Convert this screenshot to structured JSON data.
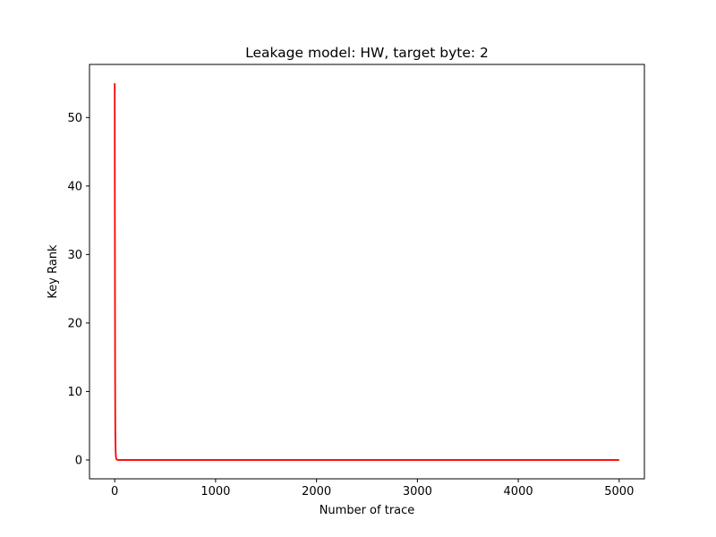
{
  "chart_data": {
    "type": "line",
    "title": "Leakage model: HW, target byte: 2",
    "xlabel": "Number of trace",
    "ylabel": "Key Rank",
    "xlim": [
      -250,
      5250
    ],
    "ylim": [
      -2.75,
      57.75
    ],
    "x_ticks": [
      0,
      1000,
      2000,
      3000,
      4000,
      5000
    ],
    "y_ticks": [
      0,
      10,
      20,
      30,
      40,
      50
    ],
    "x_tick_labels": [
      "0",
      "1000",
      "2000",
      "3000",
      "4000",
      "5000"
    ],
    "y_tick_labels": [
      "0",
      "10",
      "20",
      "30",
      "40",
      "50"
    ],
    "grid": false,
    "series": [
      {
        "color": "#ff0000",
        "x": [
          0,
          1,
          2,
          3,
          4,
          5,
          6,
          8,
          10,
          12,
          15,
          20,
          30,
          50,
          100,
          500,
          1000,
          2000,
          3000,
          4000,
          5000
        ],
        "values": [
          55,
          42,
          30,
          20,
          12,
          7,
          4,
          2,
          1,
          0.5,
          0.2,
          0.05,
          0,
          0,
          0,
          0,
          0,
          0,
          0,
          0,
          0
        ]
      }
    ]
  }
}
